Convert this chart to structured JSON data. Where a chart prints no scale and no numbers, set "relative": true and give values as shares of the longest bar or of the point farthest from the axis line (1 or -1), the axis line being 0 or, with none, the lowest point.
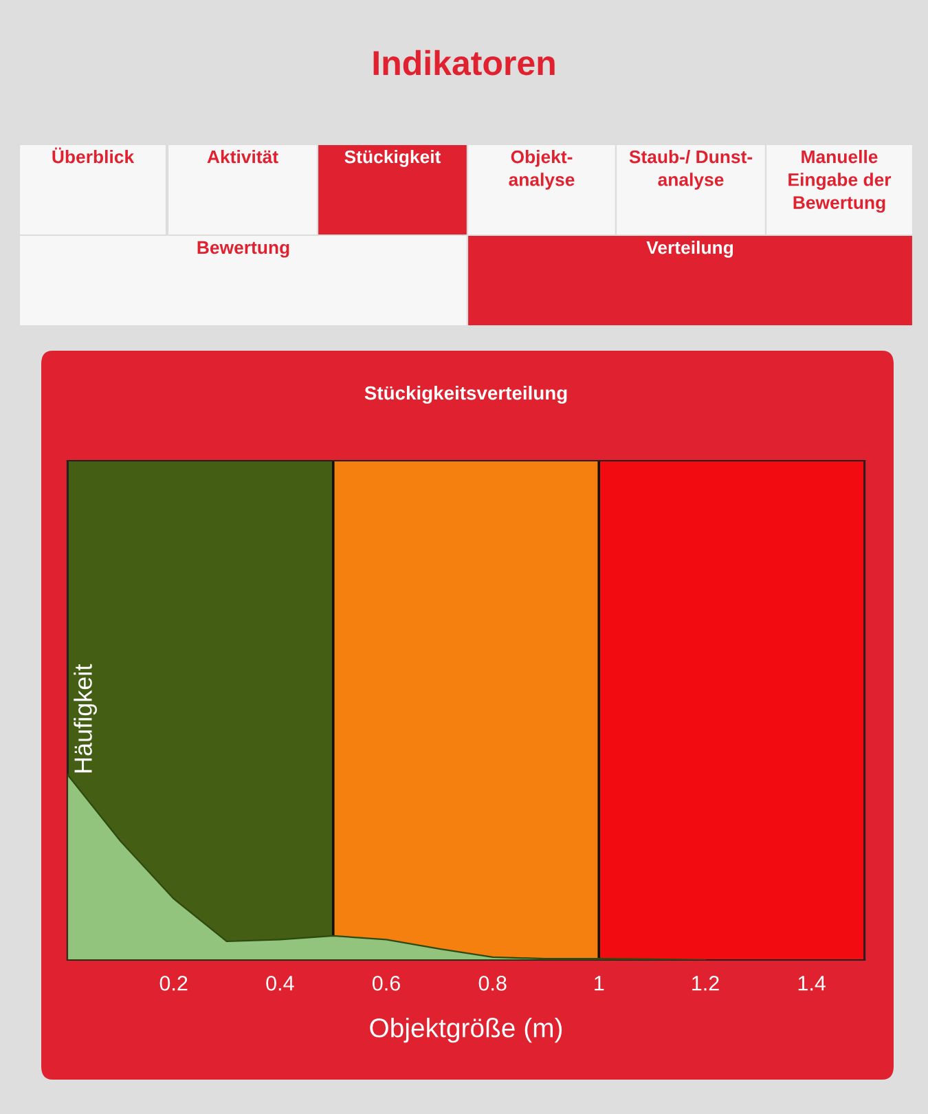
{
  "chart_data": {
    "type": "area",
    "title": "Stückigkeitsverteilung",
    "xlabel": "Objektgröße (m)",
    "ylabel": "Häufigkeit",
    "x": [
      0,
      0.1,
      0.2,
      0.3,
      0.4,
      0.5,
      0.6,
      0.7,
      0.8,
      0.9,
      1.0,
      1.1,
      1.2
    ],
    "series": [
      {
        "color": "#93c47d",
        "values": [
          1,
          0.64,
          0.33,
          0.1,
          0.11,
          0.13,
          0.11,
          0.06,
          0.015,
          0.007,
          0.007,
          0.004,
          0
        ]
      }
    ],
    "relative": true,
    "xlim": [
      0,
      1.5
    ],
    "xticks": [
      0.2,
      0.4,
      0.6,
      0.8,
      1,
      1.2,
      1.4
    ],
    "legend": false,
    "bands": [
      {
        "axis": "x",
        "from": 0,
        "to": 0.5,
        "color": "#445f14"
      },
      {
        "axis": "x",
        "from": 0.5,
        "to": 1,
        "color": "#f5800f"
      },
      {
        "axis": "x",
        "from": 1,
        "to": 1.5,
        "color": "#f20c12"
      }
    ],
    "annotations": [
      "Indikatoren",
      "Überblick",
      "Aktivität",
      "Stückigkeit",
      "Objekt- analyse",
      "Staub-/ Dunst- analyse",
      "Manuelle Eingabe der Bewertung",
      "Bewertung",
      "Verteilung"
    ]
  }
}
